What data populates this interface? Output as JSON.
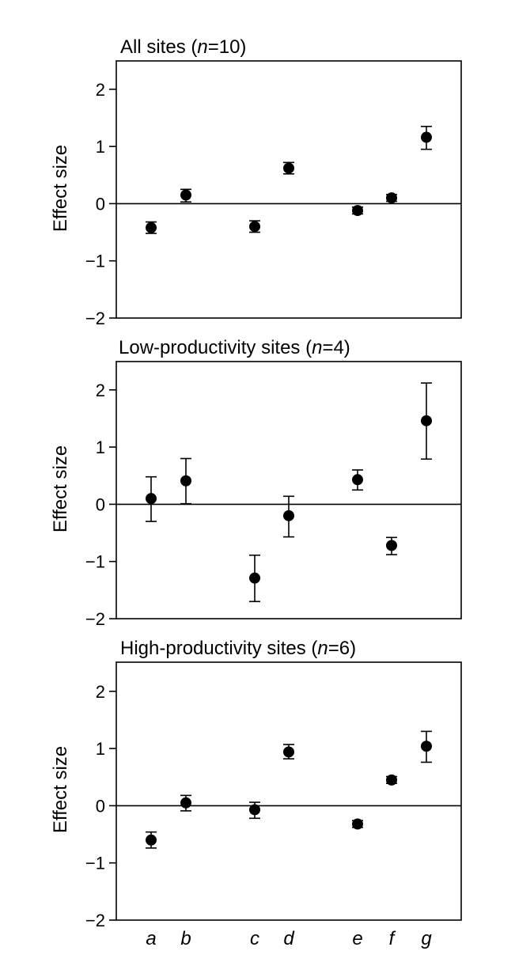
{
  "chart_data": [
    {
      "type": "scatter",
      "title_parts": [
        "All sites (",
        "n",
        "=10)"
      ],
      "ylabel": "Effect size",
      "ylim": [
        -2,
        2.5
      ],
      "yticks": [
        2,
        1,
        0,
        -1,
        -2
      ],
      "ytick_labels": [
        "2",
        "1",
        "0",
        "−1",
        "−2"
      ],
      "reference_line_y": 0,
      "points": [
        {
          "x": "a",
          "y": -0.42,
          "err_low": -0.52,
          "err_high": -0.32
        },
        {
          "x": "b",
          "y": 0.15,
          "err_low": 0.03,
          "err_high": 0.25
        },
        {
          "x": "c",
          "y": -0.4,
          "err_low": -0.5,
          "err_high": -0.3
        },
        {
          "x": "d",
          "y": 0.62,
          "err_low": 0.52,
          "err_high": 0.72
        },
        {
          "x": "e",
          "y": -0.12,
          "err_low": -0.18,
          "err_high": -0.06
        },
        {
          "x": "f",
          "y": 0.1,
          "err_low": 0.04,
          "err_high": 0.16
        },
        {
          "x": "g",
          "y": 1.16,
          "err_low": 0.95,
          "err_high": 1.35
        }
      ]
    },
    {
      "type": "scatter",
      "title_parts": [
        "Low-productivity sites (",
        "n",
        "=4)"
      ],
      "ylabel": "Effect size",
      "ylim": [
        -2,
        2.5
      ],
      "yticks": [
        2,
        1,
        0,
        -1,
        -2
      ],
      "ytick_labels": [
        "2",
        "1",
        "0",
        "−1",
        "−2"
      ],
      "reference_line_y": 0,
      "points": [
        {
          "x": "a",
          "y": 0.1,
          "err_low": -0.3,
          "err_high": 0.48
        },
        {
          "x": "b",
          "y": 0.41,
          "err_low": 0.01,
          "err_high": 0.8
        },
        {
          "x": "c",
          "y": -1.29,
          "err_low": -1.7,
          "err_high": -0.89
        },
        {
          "x": "d",
          "y": -0.2,
          "err_low": -0.57,
          "err_high": 0.14
        },
        {
          "x": "e",
          "y": 0.43,
          "err_low": 0.25,
          "err_high": 0.6
        },
        {
          "x": "f",
          "y": -0.72,
          "err_low": -0.88,
          "err_high": -0.58
        },
        {
          "x": "g",
          "y": 1.46,
          "err_low": 0.79,
          "err_high": 2.12
        }
      ]
    },
    {
      "type": "scatter",
      "title_parts": [
        "High-productivity sites (",
        "n",
        "=6)"
      ],
      "ylabel": "Effect size",
      "ylim": [
        -2,
        2.5
      ],
      "yticks": [
        2,
        1,
        0,
        -1,
        -2
      ],
      "ytick_labels": [
        "2",
        "1",
        "0",
        "−1",
        "−2"
      ],
      "reference_line_y": 0,
      "points": [
        {
          "x": "a",
          "y": -0.6,
          "err_low": -0.74,
          "err_high": -0.46
        },
        {
          "x": "b",
          "y": 0.05,
          "err_low": -0.09,
          "err_high": 0.18
        },
        {
          "x": "c",
          "y": -0.07,
          "err_low": -0.22,
          "err_high": 0.06
        },
        {
          "x": "d",
          "y": 0.94,
          "err_low": 0.82,
          "err_high": 1.07
        },
        {
          "x": "e",
          "y": -0.32,
          "err_low": -0.38,
          "err_high": -0.26
        },
        {
          "x": "f",
          "y": 0.45,
          "err_low": 0.39,
          "err_high": 0.51
        },
        {
          "x": "g",
          "y": 1.04,
          "err_low": 0.76,
          "err_high": 1.3
        }
      ]
    }
  ],
  "x_category_labels": [
    "a",
    "b",
    "c",
    "d",
    "e",
    "f",
    "g"
  ]
}
